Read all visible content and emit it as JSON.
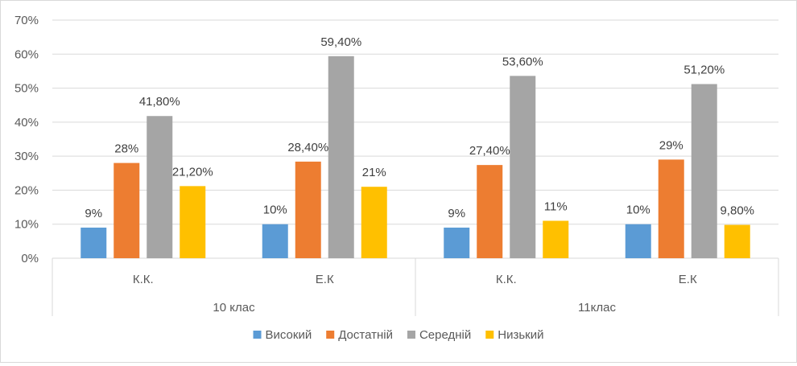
{
  "chart_data": {
    "type": "bar",
    "title": "",
    "xlabel": "",
    "ylabel": "",
    "ylim": [
      0,
      70
    ],
    "yticks": [
      0,
      10,
      20,
      30,
      40,
      50,
      60,
      70
    ],
    "ytick_labels": [
      "0%",
      "10%",
      "20%",
      "30%",
      "40%",
      "50%",
      "60%",
      "70%"
    ],
    "grid": true,
    "legend_position": "bottom",
    "groups": [
      {
        "label": "10 клас",
        "categories": [
          "К.К.",
          "Е.К"
        ]
      },
      {
        "label": "11клас",
        "categories": [
          "К.К.",
          "Е.К"
        ]
      }
    ],
    "categories": [
      "К.К.",
      "Е.К",
      "К.К.",
      "Е.К"
    ],
    "series": [
      {
        "name": "Високий",
        "color": "#5b9bd5",
        "values": [
          9,
          10,
          9,
          10
        ],
        "labels": [
          "9%",
          "10%",
          "9%",
          "10%"
        ]
      },
      {
        "name": "Достатній",
        "color": "#ed7d31",
        "values": [
          28,
          28.4,
          27.4,
          29
        ],
        "labels": [
          "28%",
          "28,40%",
          "27,40%",
          "29%"
        ]
      },
      {
        "name": "Середній",
        "color": "#a5a5a5",
        "values": [
          41.8,
          59.4,
          53.6,
          51.2
        ],
        "labels": [
          "41,80%",
          "59,40%",
          "53,60%",
          "51,20%"
        ]
      },
      {
        "name": "Низький",
        "color": "#ffc000",
        "values": [
          21.2,
          21,
          11,
          9.8
        ],
        "labels": [
          "21,20%",
          "21%",
          "11%",
          "9,80%"
        ]
      }
    ]
  }
}
